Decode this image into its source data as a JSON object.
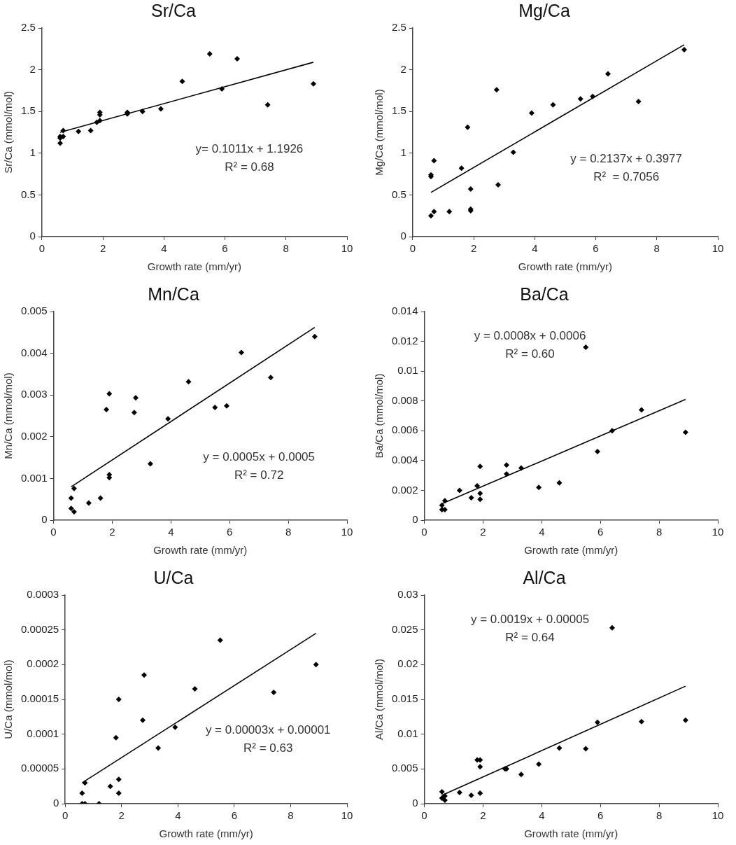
{
  "chart_data": [
    {
      "type": "scatter",
      "title": "Sr/Ca",
      "xlabel": "Growth rate (mm/yr)",
      "ylabel": "Sr/Ca (mmol/mol)",
      "annotations": [
        "y= 0.1011x + 1.1926",
        "R² = 0.68"
      ],
      "xlim": [
        0,
        10
      ],
      "xticks": [
        0,
        2,
        4,
        6,
        8,
        10
      ],
      "ylim": [
        0,
        2.5
      ],
      "yticks": [
        0,
        0.5,
        1,
        1.5,
        2,
        2.5
      ],
      "grid": false,
      "marker": "diamond",
      "series": [
        {
          "type": "scatter",
          "color": "#000000",
          "x": [
            0.6,
            0.6,
            0.6,
            0.7,
            0.7,
            1.2,
            1.6,
            1.8,
            1.9,
            1.9,
            1.9,
            2.8,
            2.8,
            3.3,
            3.9,
            4.6,
            5.5,
            5.9,
            6.4,
            7.4,
            8.9
          ],
          "values": [
            1.12,
            1.18,
            1.2,
            1.27,
            1.2,
            1.26,
            1.27,
            1.37,
            1.39,
            1.46,
            1.49,
            1.47,
            1.49,
            1.5,
            1.53,
            1.86,
            2.19,
            1.77,
            2.13,
            1.58,
            1.83
          ]
        },
        {
          "type": "line",
          "color": "#000000",
          "marker": "none",
          "x": [
            0.6,
            8.9
          ],
          "values": [
            1.25,
            2.09
          ]
        }
      ]
    },
    {
      "type": "scatter",
      "title": "Mg/Ca",
      "xlabel": "Growth rate (mm/yr)",
      "ylabel": "Mg/Ca (mmol/mol)",
      "annotations": [
        "y = 0.2137x + 0.3977",
        "R²  = 0.7056"
      ],
      "xlim": [
        0,
        10
      ],
      "xticks": [
        0,
        2,
        4,
        6,
        8,
        10
      ],
      "ylim": [
        0,
        2.5
      ],
      "yticks": [
        0,
        0.5,
        1,
        1.5,
        2,
        2.5
      ],
      "grid": false,
      "marker": "diamond",
      "series": [
        {
          "type": "scatter",
          "color": "#000000",
          "x": [
            0.6,
            0.6,
            0.6,
            0.7,
            0.7,
            1.2,
            1.6,
            1.8,
            1.9,
            1.9,
            1.9,
            2.75,
            2.8,
            3.3,
            3.9,
            4.6,
            5.5,
            5.9,
            6.4,
            7.4,
            8.9
          ],
          "values": [
            0.25,
            0.72,
            0.74,
            0.3,
            0.91,
            0.3,
            0.82,
            1.31,
            0.31,
            0.33,
            0.57,
            1.76,
            0.62,
            1.01,
            1.48,
            1.58,
            1.65,
            1.68,
            1.95,
            1.62,
            2.24
          ]
        },
        {
          "type": "line",
          "color": "#000000",
          "marker": "none",
          "x": [
            0.6,
            8.9
          ],
          "values": [
            0.53,
            2.3
          ]
        }
      ]
    },
    {
      "type": "scatter",
      "title": "Mn/Ca",
      "xlabel": "Growth rate (mm/yr)",
      "ylabel": "Mn/Ca (mmol/mol)",
      "annotations": [
        "y = 0.0005x + 0.0005",
        "R² = 0.72"
      ],
      "xlim": [
        0,
        10
      ],
      "xticks": [
        0,
        2,
        4,
        6,
        8,
        10
      ],
      "ylim": [
        0,
        0.005
      ],
      "yticks": [
        0,
        0.001,
        0.002,
        0.003,
        0.004,
        0.005
      ],
      "grid": false,
      "marker": "diamond",
      "series": [
        {
          "type": "scatter",
          "color": "#000000",
          "x": [
            0.6,
            0.6,
            0.7,
            0.7,
            1.2,
            1.6,
            1.8,
            1.9,
            1.9,
            1.9,
            2.75,
            2.8,
            3.3,
            3.9,
            4.6,
            5.5,
            5.9,
            6.4,
            7.4,
            8.9
          ],
          "values": [
            0.00053,
            0.00028,
            0.00076,
            0.0002,
            0.00041,
            0.00053,
            0.00265,
            0.00303,
            0.00102,
            0.00109,
            0.00258,
            0.00293,
            0.00135,
            0.00243,
            0.00332,
            0.0027,
            0.00274,
            0.00402,
            0.00342,
            0.0044
          ]
        },
        {
          "type": "line",
          "color": "#000000",
          "marker": "none",
          "x": [
            0.6,
            8.9
          ],
          "values": [
            0.0008,
            0.00462
          ]
        }
      ]
    },
    {
      "type": "scatter",
      "title": "Ba/Ca",
      "xlabel": "Growth rate (mm/yr)",
      "ylabel": "Ba/Ca (mmol/mol)",
      "annotations": [
        "y = 0.0008x + 0.0006",
        "R² = 0.60"
      ],
      "xlim": [
        0,
        10
      ],
      "xticks": [
        0,
        2,
        4,
        6,
        8,
        10
      ],
      "ylim": [
        0,
        0.014
      ],
      "yticks": [
        0,
        0.002,
        0.004,
        0.006,
        0.008,
        0.01,
        0.012,
        0.014
      ],
      "grid": false,
      "marker": "diamond",
      "series": [
        {
          "type": "scatter",
          "color": "#000000",
          "x": [
            0.6,
            0.6,
            0.7,
            0.7,
            1.2,
            1.6,
            1.8,
            1.9,
            1.9,
            1.9,
            2.8,
            2.8,
            3.3,
            3.9,
            4.6,
            5.5,
            5.9,
            6.4,
            7.4,
            8.9
          ],
          "values": [
            0.0007,
            0.001,
            0.0007,
            0.0013,
            0.002,
            0.0015,
            0.0023,
            0.0036,
            0.0018,
            0.0014,
            0.0031,
            0.0037,
            0.0035,
            0.0022,
            0.0025,
            0.0116,
            0.0046,
            0.006,
            0.0074,
            0.0059
          ]
        },
        {
          "type": "line",
          "color": "#000000",
          "marker": "none",
          "x": [
            0.6,
            8.9
          ],
          "values": [
            0.0011,
            0.0081
          ]
        }
      ]
    },
    {
      "type": "scatter",
      "title": "U/Ca",
      "xlabel": "Growth rate (mm/yr)",
      "ylabel": "U/Ca (mmol/mol)",
      "annotations": [
        "y = 0.00003x + 0.00001",
        "R² = 0.63"
      ],
      "xlim": [
        0,
        10
      ],
      "xticks": [
        0,
        2,
        4,
        6,
        8,
        10
      ],
      "ylim": [
        0,
        0.0003
      ],
      "yticks": [
        0,
        {
          "value": 5e-05,
          "label": "0.00005"
        },
        0.0001,
        0.00015,
        0.0002,
        0.00025,
        0.0003
      ],
      "grid": false,
      "marker": "diamond",
      "series": [
        {
          "type": "scatter",
          "color": "#000000",
          "x": [
            0.6,
            0.6,
            0.7,
            0.7,
            1.2,
            1.6,
            1.8,
            1.9,
            1.9,
            1.9,
            2.75,
            2.8,
            3.3,
            3.9,
            4.6,
            5.5,
            7.4,
            8.9
          ],
          "values": [
            1.5e-05,
            0,
            3e-05,
            0,
            0,
            2.5e-05,
            9.5e-05,
            0.00015,
            3.5e-05,
            1.5e-05,
            0.00012,
            0.000185,
            8e-05,
            0.00011,
            0.000165,
            0.000235,
            0.00016,
            0.0002
          ]
        },
        {
          "type": "line",
          "color": "#000000",
          "marker": "none",
          "x": [
            0.6,
            8.9
          ],
          "values": [
            3e-05,
            0.000245
          ]
        }
      ]
    },
    {
      "type": "scatter",
      "title": "Al/Ca",
      "xlabel": "Growth rate (mm/yr)",
      "ylabel": "Al/Ca (mmol/mol)",
      "annotations": [
        "y = 0.0019x + 0.00005",
        "R² = 0.64"
      ],
      "xlim": [
        0,
        10
      ],
      "xticks": [
        0,
        2,
        4,
        6,
        8,
        10
      ],
      "ylim": [
        0,
        0.03
      ],
      "yticks": [
        0,
        0.005,
        0.01,
        0.015,
        0.02,
        0.025,
        0.03
      ],
      "grid": false,
      "marker": "diamond",
      "series": [
        {
          "type": "scatter",
          "color": "#000000",
          "x": [
            0.6,
            0.6,
            0.7,
            0.7,
            1.2,
            1.6,
            1.8,
            1.9,
            1.9,
            1.9,
            2.75,
            2.8,
            3.3,
            3.9,
            4.6,
            5.5,
            5.9,
            6.4,
            7.4,
            8.9
          ],
          "values": [
            0.0017,
            0.0008,
            0.0005,
            0.0011,
            0.0016,
            0.0012,
            0.0063,
            0.0063,
            0.0053,
            0.0015,
            0.005,
            0.005,
            0.0042,
            0.0057,
            0.008,
            0.0079,
            0.0117,
            0.0253,
            0.0118,
            0.012
          ]
        },
        {
          "type": "line",
          "color": "#000000",
          "marker": "none",
          "x": [
            0.6,
            8.9
          ],
          "values": [
            0.0012,
            0.0169
          ]
        }
      ]
    }
  ]
}
